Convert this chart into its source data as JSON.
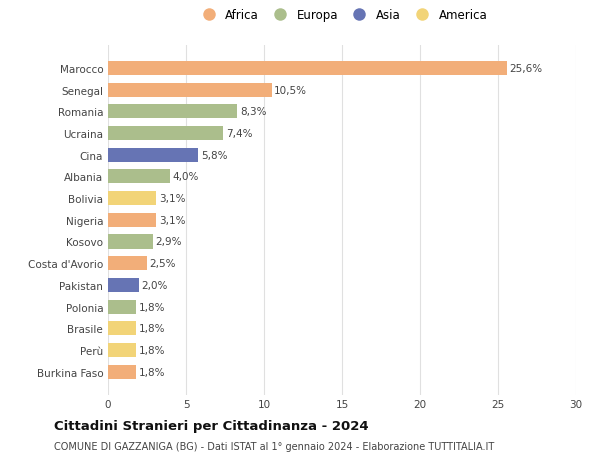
{
  "countries": [
    "Marocco",
    "Senegal",
    "Romania",
    "Ucraina",
    "Cina",
    "Albania",
    "Bolivia",
    "Nigeria",
    "Kosovo",
    "Costa d'Avorio",
    "Pakistan",
    "Polonia",
    "Brasile",
    "Perù",
    "Burkina Faso"
  ],
  "values": [
    25.6,
    10.5,
    8.3,
    7.4,
    5.8,
    4.0,
    3.1,
    3.1,
    2.9,
    2.5,
    2.0,
    1.8,
    1.8,
    1.8,
    1.8
  ],
  "labels": [
    "25,6%",
    "10,5%",
    "8,3%",
    "7,4%",
    "5,8%",
    "4,0%",
    "3,1%",
    "3,1%",
    "2,9%",
    "2,5%",
    "2,0%",
    "1,8%",
    "1,8%",
    "1,8%",
    "1,8%"
  ],
  "continents": [
    "Africa",
    "Africa",
    "Europa",
    "Europa",
    "Asia",
    "Europa",
    "America",
    "Africa",
    "Europa",
    "Africa",
    "Asia",
    "Europa",
    "America",
    "America",
    "Africa"
  ],
  "continent_colors": {
    "Africa": "#F2AE79",
    "Europa": "#ABBE8C",
    "Asia": "#6674B4",
    "America": "#F2D478"
  },
  "legend_order": [
    "Africa",
    "Europa",
    "Asia",
    "America"
  ],
  "title": "Cittadini Stranieri per Cittadinanza - 2024",
  "subtitle": "COMUNE DI GAZZANIGA (BG) - Dati ISTAT al 1° gennaio 2024 - Elaborazione TUTTITALIA.IT",
  "xlim": [
    0,
    30
  ],
  "xticks": [
    0,
    5,
    10,
    15,
    20,
    25,
    30
  ],
  "background_color": "#ffffff",
  "grid_color": "#e0e0e0",
  "bar_height": 0.65,
  "title_fontsize": 9.5,
  "subtitle_fontsize": 7,
  "label_fontsize": 7.5,
  "tick_fontsize": 7.5,
  "legend_fontsize": 8.5
}
